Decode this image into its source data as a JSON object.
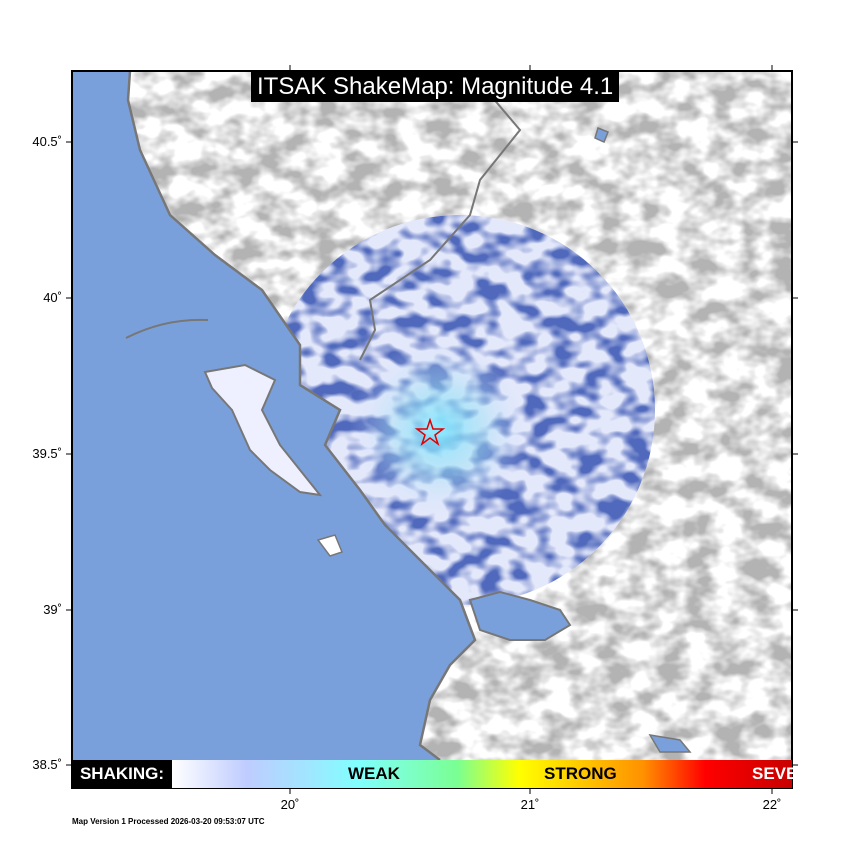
{
  "title": "ITSAK ShakeMap: Magnitude 4.1",
  "map": {
    "lat_labels": [
      "40.5˚",
      "40˚",
      "39.5˚",
      "39˚",
      "38.5˚"
    ],
    "lon_labels": [
      "20˚",
      "21˚",
      "22˚"
    ],
    "epicenter_marker": "star-icon",
    "colors": {
      "sea": "#7aa0dc",
      "coastline": "#777777",
      "epicenter": "#e00000",
      "intensity_weak": "#1a2a8a",
      "intensity_light": "#8ff0ff"
    }
  },
  "legend": {
    "label": "SHAKING:",
    "weak": "WEAK",
    "strong": "STRONG",
    "severe": "SEVERE"
  },
  "footer": "Map Version 1 Processed 2026-03-20 09:53:07 UTC"
}
